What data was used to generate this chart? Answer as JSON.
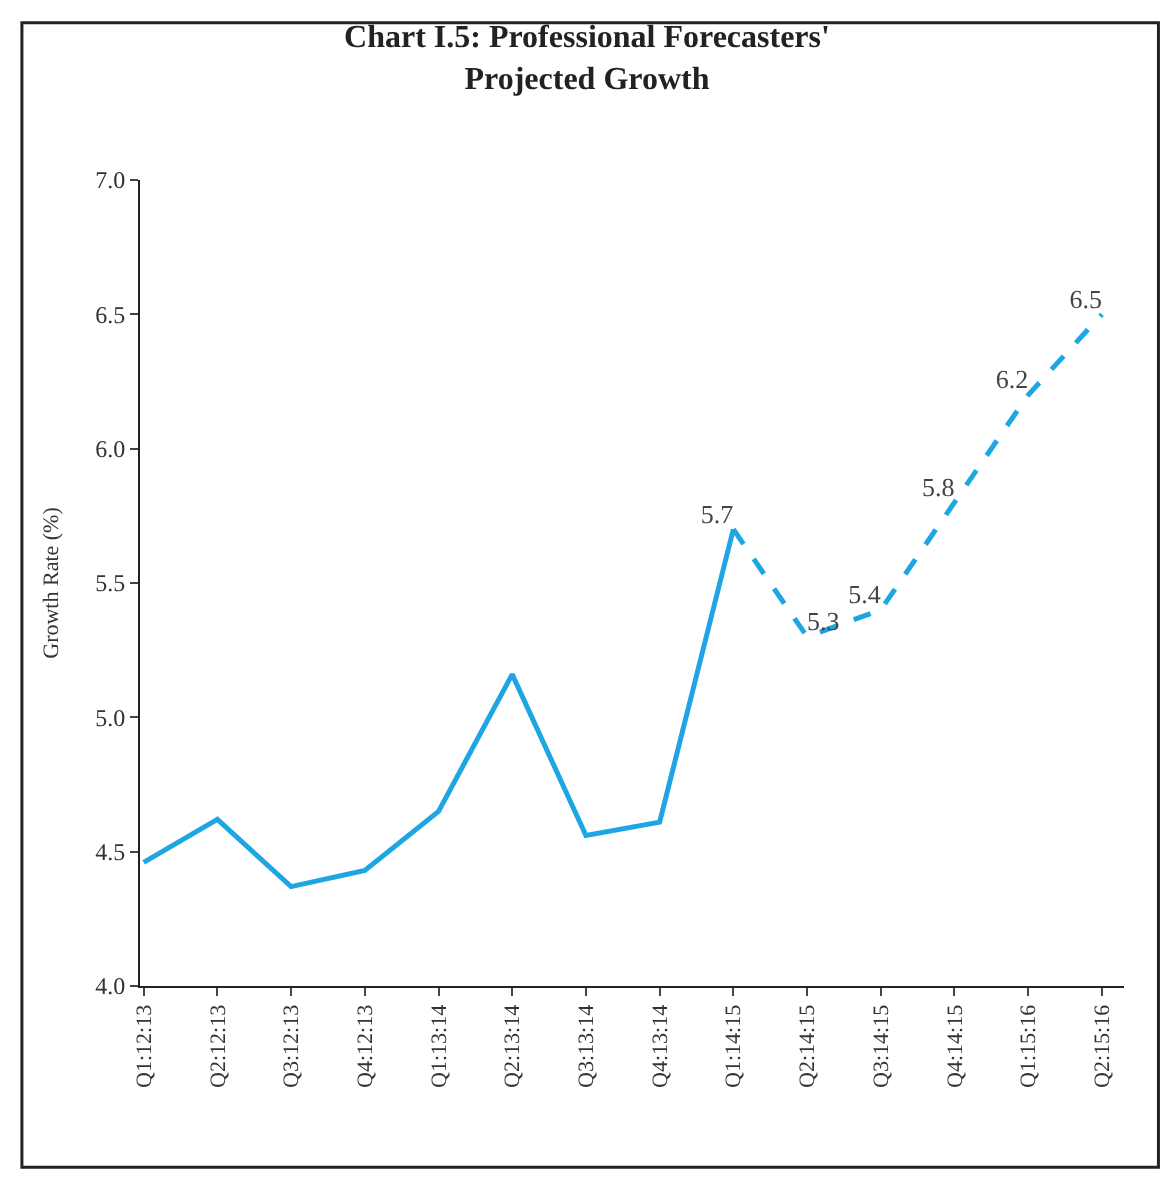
{
  "chart_data": {
    "type": "line",
    "title": "Chart I.5: Professional Forecasters'\nProjected Growth",
    "ylabel": "Growth Rate (%)",
    "categories": [
      "Q1:12:13",
      "Q2:12:13",
      "Q3:12:13",
      "Q4:12:13",
      "Q1:13:14",
      "Q2:13:14",
      "Q3:13:14",
      "Q4:13:14",
      "Q1:14:15",
      "Q2:14:15",
      "Q3:14:15",
      "Q4:14:15",
      "Q1:15:16",
      "Q2:15:16"
    ],
    "series": [
      {
        "color": "#1ea6e3",
        "line_style": "solid",
        "values": [
          4.46,
          4.62,
          4.37,
          4.43,
          4.65,
          5.16,
          4.56,
          4.61,
          5.7,
          null,
          null,
          null,
          null,
          null
        ]
      },
      {
        "color": "#1ea6e3",
        "line_style": "dashed",
        "values": [
          null,
          null,
          null,
          null,
          null,
          null,
          null,
          null,
          5.7,
          5.3,
          5.4,
          5.8,
          6.2,
          6.5
        ],
        "value_labels": [
          null,
          null,
          null,
          null,
          null,
          null,
          null,
          null,
          "5.7",
          "5.3",
          "5.4",
          "5.8",
          "6.2",
          "6.5"
        ]
      }
    ],
    "ylim": [
      4.0,
      7.0
    ],
    "yticks": [
      {
        "value": 4.0,
        "label": "4.0"
      },
      {
        "value": 4.5,
        "label": "4.5"
      },
      {
        "value": 5.0,
        "label": "5.0"
      },
      {
        "value": 5.5,
        "label": "5.5"
      },
      {
        "value": 6.0,
        "label": "6.0"
      },
      {
        "value": 6.5,
        "label": "6.5"
      },
      {
        "value": 7.0,
        "label": "7.0"
      }
    ],
    "legend": false,
    "marker": "none"
  }
}
